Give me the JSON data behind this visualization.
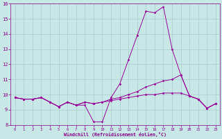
{
  "line1_x": [
    0,
    1,
    2,
    3,
    4,
    5,
    6,
    7,
    8,
    9,
    10,
    11,
    12,
    13,
    14,
    15,
    16,
    17,
    18,
    19,
    20,
    21,
    22,
    23
  ],
  "line1_y": [
    9.8,
    9.7,
    9.7,
    9.8,
    9.5,
    9.2,
    9.5,
    9.3,
    9.3,
    8.2,
    8.2,
    9.8,
    10.7,
    12.3,
    13.9,
    15.5,
    15.4,
    15.8,
    13.0,
    11.3,
    9.9,
    9.7,
    9.1,
    9.4
  ],
  "line2_x": [
    0,
    1,
    2,
    3,
    4,
    5,
    6,
    7,
    8,
    9,
    10,
    11,
    12,
    13,
    14,
    15,
    16,
    17,
    18,
    19,
    20,
    21,
    22,
    23
  ],
  "line2_y": [
    9.8,
    9.7,
    9.7,
    9.8,
    9.5,
    9.2,
    9.5,
    9.3,
    9.5,
    9.4,
    9.5,
    9.7,
    9.8,
    10.0,
    10.2,
    10.5,
    10.7,
    10.9,
    11.0,
    11.3,
    9.9,
    9.7,
    9.1,
    9.4
  ],
  "line3_x": [
    0,
    1,
    2,
    3,
    4,
    5,
    6,
    7,
    8,
    9,
    10,
    11,
    12,
    13,
    14,
    15,
    16,
    17,
    18,
    19,
    20,
    21,
    22,
    23
  ],
  "line3_y": [
    9.8,
    9.7,
    9.7,
    9.8,
    9.5,
    9.2,
    9.5,
    9.3,
    9.5,
    9.4,
    9.5,
    9.6,
    9.7,
    9.8,
    9.9,
    10.0,
    10.0,
    10.1,
    10.1,
    10.1,
    9.9,
    9.7,
    9.1,
    9.4
  ],
  "line_color": "#990099",
  "marker_color": "#990099",
  "bg_color": "#C8E8E8",
  "xlabel": "Windchill (Refroidissement éolien,°C)",
  "xlim": [
    -0.5,
    23.5
  ],
  "ylim": [
    8,
    16
  ],
  "yticks": [
    8,
    9,
    10,
    11,
    12,
    13,
    14,
    15,
    16
  ],
  "xticks": [
    0,
    1,
    2,
    3,
    4,
    5,
    6,
    7,
    8,
    9,
    10,
    11,
    12,
    13,
    14,
    15,
    16,
    17,
    18,
    19,
    20,
    21,
    22,
    23
  ],
  "grid_color": "#AACCCC",
  "tick_color": "#880088",
  "label_color": "#880088"
}
